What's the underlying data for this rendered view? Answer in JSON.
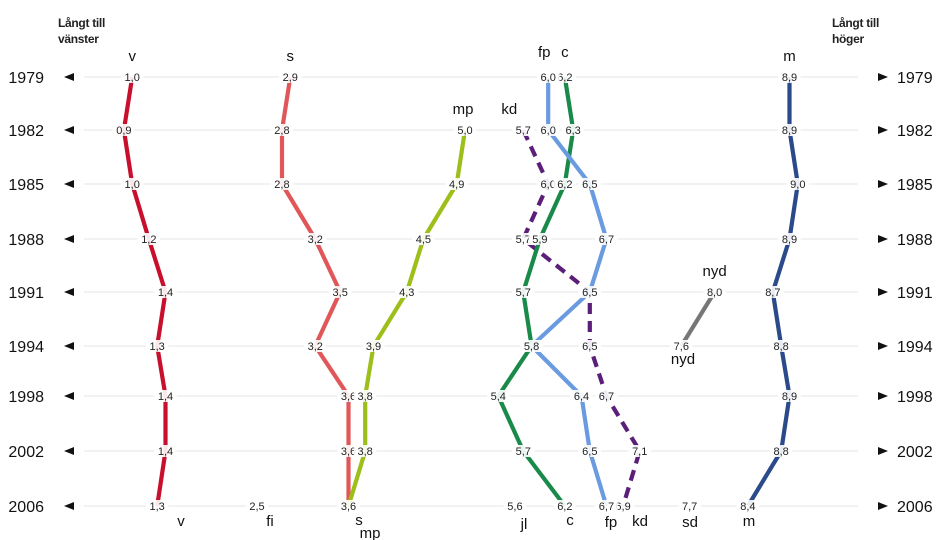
{
  "chart_data": {
    "type": "line",
    "left_header": [
      "Långt till",
      "vänster"
    ],
    "right_header": [
      "Långt till",
      "höger"
    ],
    "years": [
      "1979",
      "1982",
      "1985",
      "1988",
      "1991",
      "1994",
      "1998",
      "2002",
      "2006"
    ],
    "xlim": [
      0,
      10
    ],
    "grid": true,
    "series": [
      {
        "name": "v",
        "color": "#c8102e",
        "dashed": false,
        "years": [
          "1979",
          "1982",
          "1985",
          "1988",
          "1991",
          "1994",
          "1998",
          "2002",
          "2006"
        ],
        "values": [
          1.0,
          0.9,
          1.0,
          1.2,
          1.4,
          1.3,
          1.4,
          1.4,
          1.3
        ],
        "labels": [
          "1,0",
          "0,9",
          "1,0",
          "1,2",
          "1,4",
          "1,3",
          "1,4",
          "1,4",
          "1,3"
        ]
      },
      {
        "name": "s",
        "color": "#e15759",
        "dashed": false,
        "years": [
          "1979",
          "1982",
          "1985",
          "1988",
          "1991",
          "1994",
          "1998",
          "2002",
          "2006"
        ],
        "values": [
          2.9,
          2.8,
          2.8,
          3.2,
          3.5,
          3.2,
          3.6,
          3.6,
          3.6
        ],
        "labels": [
          "2,9",
          "2,8",
          "2,8",
          "3,2",
          "3,5",
          "3,2",
          "3,6",
          "3,6",
          "3,6"
        ]
      },
      {
        "name": "mp",
        "color": "#9dbf1a",
        "dashed": false,
        "years": [
          "1982",
          "1985",
          "1988",
          "1991",
          "1994",
          "1998",
          "2002",
          "2006"
        ],
        "values": [
          5.0,
          4.9,
          4.5,
          4.3,
          3.9,
          3.8,
          3.8,
          3.6
        ],
        "labels": [
          "5,0",
          "4,9",
          "4,5",
          "4,3",
          "3,9",
          "3,8",
          "3,8",
          ""
        ]
      },
      {
        "name": "kd",
        "color": "#5b1f7a",
        "dashed": true,
        "years": [
          "1982",
          "1985",
          "1988",
          "1991",
          "1994",
          "1998",
          "2002",
          "2006"
        ],
        "values": [
          5.7,
          6.0,
          5.7,
          6.5,
          6.5,
          6.7,
          7.1,
          6.9
        ],
        "labels": [
          "5,7",
          "6,0",
          "5,7",
          "",
          "6,5",
          "6,7",
          "7,1",
          "6,9"
        ]
      },
      {
        "name": "c",
        "color": "#1a8a4a",
        "dashed": false,
        "years": [
          "1979",
          "1982",
          "1985",
          "1988",
          "1991",
          "1994",
          "1998",
          "2002",
          "2006"
        ],
        "values": [
          6.2,
          6.3,
          6.2,
          5.9,
          5.7,
          5.8,
          5.4,
          5.7,
          6.2
        ],
        "labels": [
          "6,2",
          "6,3",
          "6,2",
          "5,9",
          "5,7",
          "5,8",
          "5,4",
          "5,7",
          "6,2"
        ]
      },
      {
        "name": "fp",
        "color": "#6a9be0",
        "dashed": false,
        "years": [
          "1979",
          "1982",
          "1985",
          "1988",
          "1991",
          "1994",
          "1998",
          "2002",
          "2006"
        ],
        "values": [
          6.0,
          6.0,
          6.5,
          6.7,
          6.5,
          5.8,
          6.4,
          6.5,
          6.7
        ],
        "labels": [
          "6,0",
          "6,0",
          "6,5",
          "6,7",
          "6,5",
          "",
          "6,4",
          "6,5",
          "6,7"
        ]
      },
      {
        "name": "nyd",
        "color": "#777777",
        "dashed": false,
        "years": [
          "1991",
          "1994"
        ],
        "values": [
          8.0,
          7.6
        ],
        "labels": [
          "8,0",
          "7,6"
        ]
      },
      {
        "name": "m",
        "color": "#2a4a8a",
        "dashed": false,
        "years": [
          "1979",
          "1982",
          "1985",
          "1988",
          "1991",
          "1994",
          "1998",
          "2002",
          "2006"
        ],
        "values": [
          8.9,
          8.9,
          9.0,
          8.9,
          8.7,
          8.8,
          8.9,
          8.8,
          8.4
        ],
        "labels": [
          "8,9",
          "8,9",
          "9,0",
          "8,9",
          "8,7",
          "8,8",
          "8,9",
          "8,8",
          "8,4"
        ]
      }
    ],
    "points_2006": [
      {
        "name": "fi",
        "value": 2.5,
        "label": "2,5"
      },
      {
        "name": "jl",
        "value": 5.6,
        "label": "5,6"
      },
      {
        "name": "sd",
        "value": 7.7,
        "label": "7,7"
      }
    ],
    "top_labels": [
      {
        "name": "v",
        "year": "1979"
      },
      {
        "name": "s",
        "year": "1979"
      },
      {
        "name": "fp",
        "year": "1979"
      },
      {
        "name": "c",
        "year": "1979"
      },
      {
        "name": "m",
        "year": "1979"
      },
      {
        "name": "mp",
        "year": "1982"
      },
      {
        "name": "kd",
        "year": "1982"
      },
      {
        "name": "nyd",
        "year": "1991"
      }
    ],
    "bottom_labels": [
      "v",
      "fi",
      "s",
      "mp",
      "jl",
      "c",
      "fp",
      "kd",
      "sd",
      "m",
      "nyd"
    ]
  }
}
